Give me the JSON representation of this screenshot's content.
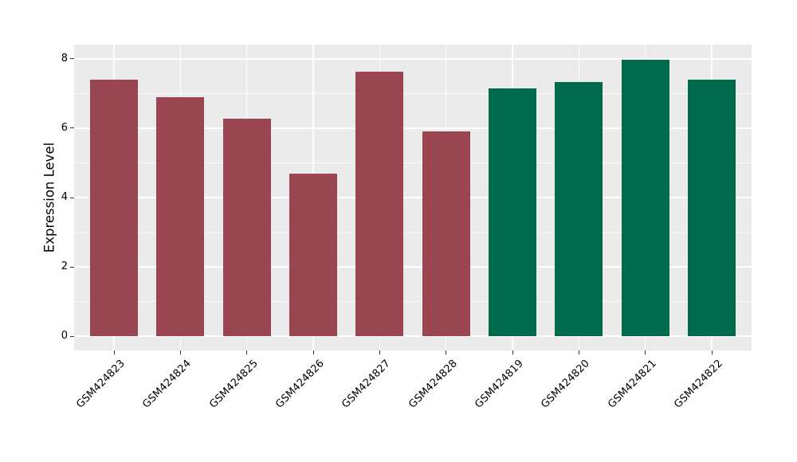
{
  "chart_data": {
    "type": "bar",
    "title": "",
    "xlabel": "",
    "ylabel": "Expression Level",
    "categories": [
      "GSM424823",
      "GSM424824",
      "GSM424825",
      "GSM424826",
      "GSM424827",
      "GSM424828",
      "GSM424819",
      "GSM424820",
      "GSM424821",
      "GSM424822"
    ],
    "values": [
      7.4,
      6.9,
      6.28,
      4.7,
      7.62,
      5.91,
      7.14,
      7.33,
      7.98,
      7.41
    ],
    "bar_colors": [
      "#9A4552",
      "#9A4552",
      "#9A4552",
      "#9A4552",
      "#9A4552",
      "#9A4552",
      "#006A4D",
      "#006A4D",
      "#006A4D",
      "#006A4D"
    ],
    "yticks": [
      0,
      2,
      4,
      6,
      8
    ],
    "yticks_minor": [
      1,
      3,
      5,
      7
    ],
    "ylim": [
      -0.41,
      8.41
    ],
    "grid": "major-and-minor",
    "legend": "none",
    "x_tick_rotation_deg": 45,
    "styles": {
      "figure_background": "#FFFFFF",
      "panel_background": "#EBEBEB",
      "grid_major_color": "#FFFFFF",
      "grid_minor_color": "#FFFFFF",
      "axis_text_color": "#000000",
      "tick_mark_color": "#333333"
    }
  }
}
